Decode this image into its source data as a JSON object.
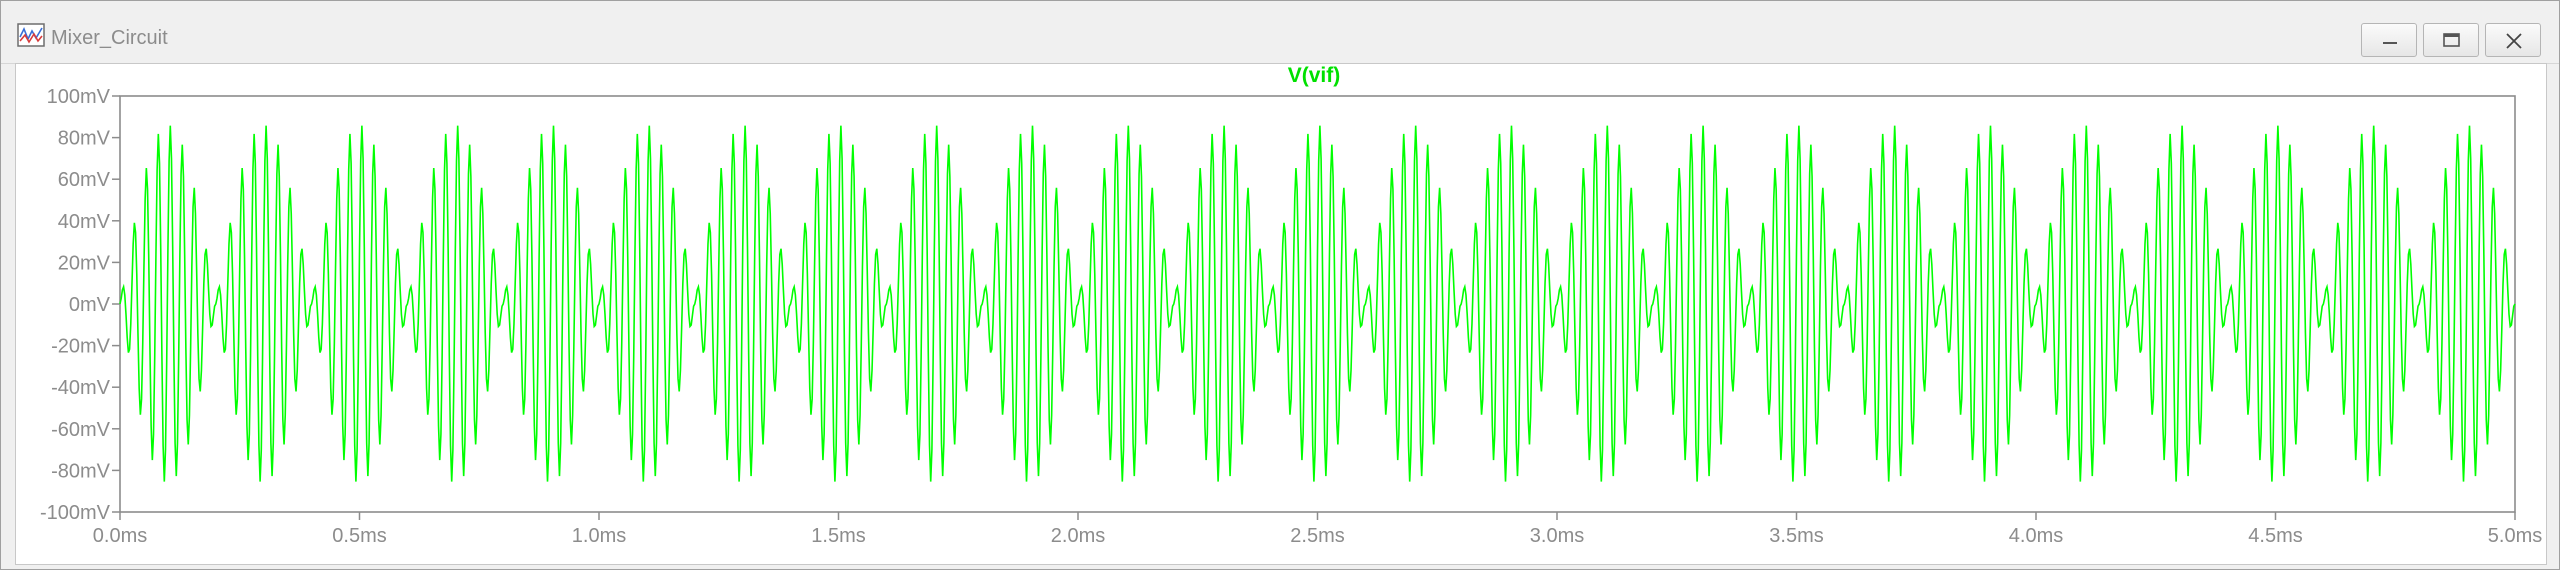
{
  "window": {
    "title": "Mixer_Circuit",
    "icon": "waveform-viewer-icon",
    "buttons": {
      "minimize": "minimize-icon",
      "maximize": "maximize-icon",
      "close": "close-icon"
    }
  },
  "colors": {
    "trace": "#00ff00",
    "axis_text": "#8c8c8c",
    "frame": "#8c8c8c",
    "background": "#ffffff"
  },
  "chart_data": {
    "type": "line",
    "title": "V(vif)",
    "xlabel": "",
    "ylabel": "",
    "x_unit": "ms",
    "y_unit": "mV",
    "xlim": [
      0.0,
      5.0
    ],
    "ylim": [
      -100,
      100
    ],
    "x_ticks": [
      "0.0ms",
      "0.5ms",
      "1.0ms",
      "1.5ms",
      "2.0ms",
      "2.5ms",
      "3.0ms",
      "3.5ms",
      "4.0ms",
      "4.5ms",
      "5.0ms"
    ],
    "y_ticks": [
      "100mV",
      "80mV",
      "60mV",
      "40mV",
      "20mV",
      "0mV",
      "-20mV",
      "-40mV",
      "-60mV",
      "-80mV",
      "-100mV"
    ],
    "series": [
      {
        "name": "V(vif)",
        "envelope_peak_mV": 86,
        "envelope_lobes": 25,
        "carrier_cycles_per_lobe": 8,
        "description_values_x_ms_range": [
          0.0,
          5.0
        ]
      }
    ],
    "grid": false,
    "legend": "top-center"
  }
}
